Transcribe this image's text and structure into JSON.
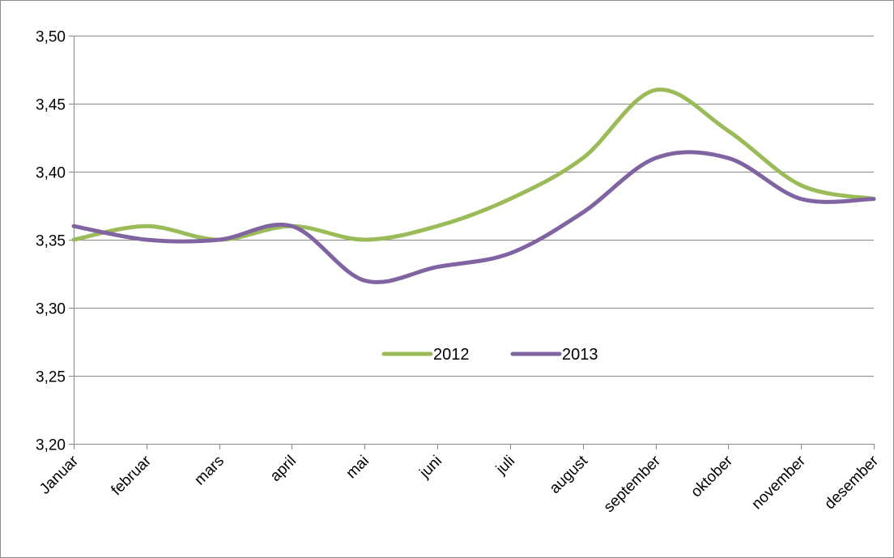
{
  "chart_data": {
    "type": "line",
    "title": "",
    "xlabel": "",
    "ylabel": "",
    "categories": [
      "Januar",
      "februar",
      "mars",
      "april",
      "mai",
      "juni",
      "juli",
      "august",
      "september",
      "oktober",
      "november",
      "desember"
    ],
    "ylim": [
      3.2,
      3.5
    ],
    "yticks": [
      3.2,
      3.25,
      3.3,
      3.35,
      3.4,
      3.45,
      3.5
    ],
    "ytick_labels": [
      "3,20",
      "3,25",
      "3,30",
      "3,35",
      "3,40",
      "3,45",
      "3,50"
    ],
    "grid": true,
    "smooth": true,
    "legend_position": "center",
    "series": [
      {
        "name": "2012",
        "color": "#9bbb59",
        "values": [
          3.35,
          3.36,
          3.35,
          3.36,
          3.35,
          3.36,
          3.38,
          3.41,
          3.46,
          3.43,
          3.39,
          3.38
        ]
      },
      {
        "name": "2013",
        "color": "#8064a2",
        "values": [
          3.36,
          3.35,
          3.35,
          3.36,
          3.32,
          3.33,
          3.34,
          3.37,
          3.41,
          3.41,
          3.38,
          3.38
        ]
      }
    ]
  }
}
